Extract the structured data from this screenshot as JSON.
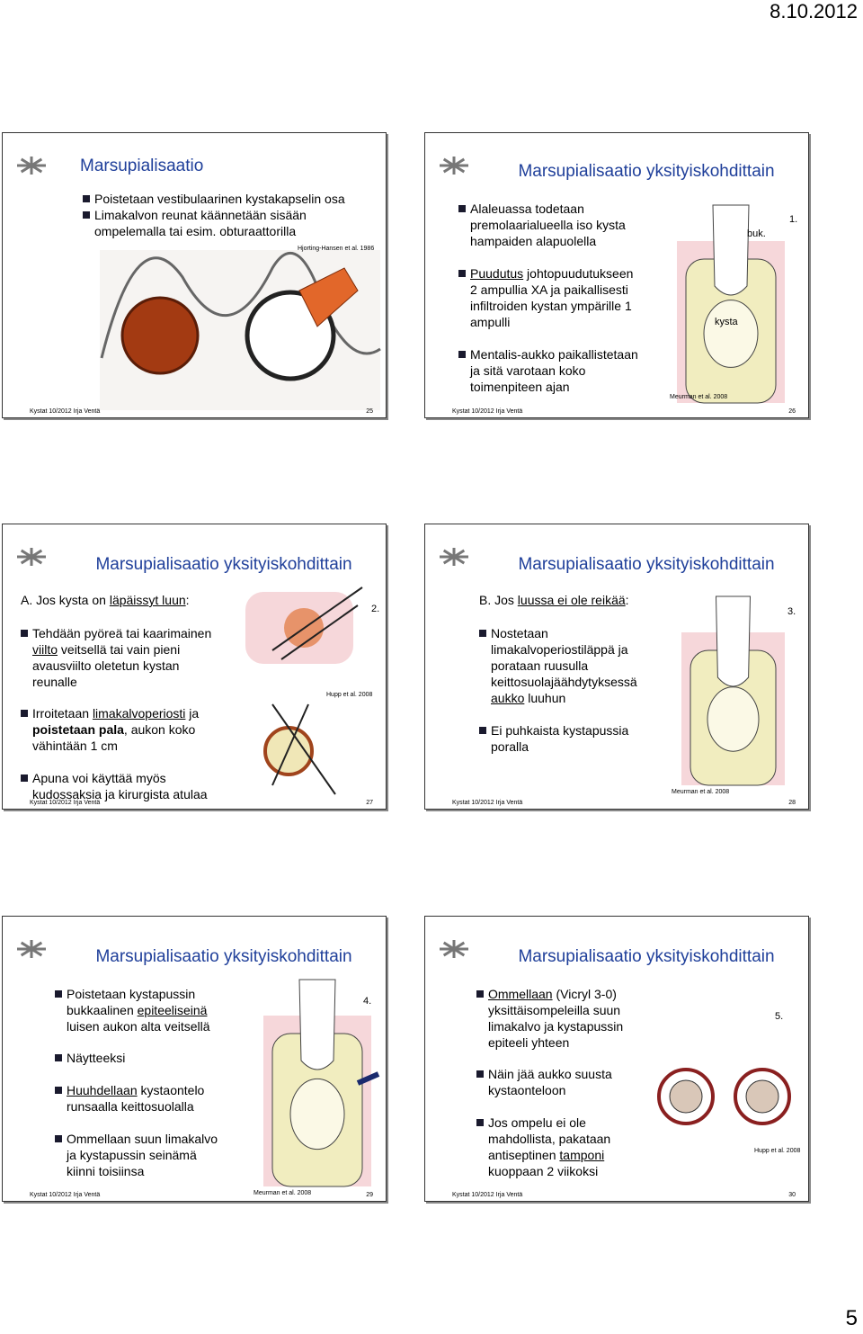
{
  "date": "8.10.2012",
  "page_number": "5",
  "slides": [
    {
      "number": "25",
      "title": "Marsupialisaatio",
      "footer": "Kystat 10/2012 Irja Ventä",
      "credit": "Hjorting-Hansen et al. 1986",
      "labels": [],
      "bullets": [
        [
          [
            "Poistetaan vestibulaarinen kystakapselin osa"
          ]
        ],
        [
          [
            "Limakalvon reunat käännetään sisään"
          ],
          [
            "ompelemalla tai esim. obturaattorilla"
          ]
        ]
      ]
    },
    {
      "number": "26",
      "title": "Marsupialisaatio yksityiskohdittain",
      "footer": "Kystat 10/2012 Irja Ventä",
      "credit": "Meurman et al. 2008",
      "labels": [
        "buk.",
        "1.",
        "kysta"
      ],
      "bullets": [
        [
          [
            "Alaleuassa todetaan"
          ],
          [
            "premolaarialueella iso kysta"
          ],
          [
            "hampaiden alapuolella"
          ]
        ],
        [
          [
            {
              "text": "Puudutus",
              "underline": true
            },
            " johtopuudutukseen"
          ],
          [
            "2 ampullia XA ja paikallisesti"
          ],
          [
            "infiltroiden kystan ympärille 1"
          ],
          [
            "ampulli"
          ]
        ],
        [
          [
            "Mentalis-aukko paikallistetaan"
          ],
          [
            "ja sitä varotaan koko"
          ],
          [
            "toimenpiteen ajan"
          ]
        ]
      ]
    },
    {
      "number": "27",
      "title": "Marsupialisaatio yksityiskohdittain",
      "footer": "Kystat 10/2012 Irja Ventä",
      "credit": "Hupp et al. 2008",
      "labels": [
        "2."
      ],
      "intro": [
        "A. Jos kysta on ",
        {
          "text": "läpäissyt luun",
          "underline": true
        },
        ":"
      ],
      "bullets": [
        [
          [
            "Tehdään pyöreä tai kaarimainen"
          ],
          [
            {
              "text": "viilto",
              "underline": true
            },
            " veitsellä tai vain pieni"
          ],
          [
            "avausviilto oletetun kystan"
          ],
          [
            "reunalle"
          ]
        ],
        [
          [
            "Irroitetaan ",
            {
              "text": "limakalvoperiosti",
              "underline": true
            },
            " ja"
          ],
          [
            {
              "text": "poistetaan pala",
              "bold": true
            },
            ", aukon koko"
          ],
          [
            "vähintään 1 cm"
          ]
        ],
        [
          [
            "Apuna voi käyttää myös"
          ],
          [
            "kudossaksia ja kirurgista atulaa"
          ]
        ]
      ]
    },
    {
      "number": "28",
      "title": "Marsupialisaatio yksityiskohdittain",
      "footer": "Kystat 10/2012 Irja Ventä",
      "credit": "Meurman et al. 2008",
      "labels": [
        "3."
      ],
      "intro": [
        "B. Jos ",
        {
          "text": "luussa ei ole reikää",
          "underline": true
        },
        ":"
      ],
      "bullets": [
        [
          [
            "Nostetaan"
          ],
          [
            "limakalvoperiostiläppä ja"
          ],
          [
            "porataan ruusulla"
          ],
          [
            "keittosuolajäähdytyksessä"
          ],
          [
            {
              "text": "aukko",
              "underline": true
            },
            " luuhun"
          ]
        ],
        [
          [
            "Ei puhkaista kystapussia"
          ],
          [
            "poralla"
          ]
        ]
      ]
    },
    {
      "number": "29",
      "title": "Marsupialisaatio yksityiskohdittain",
      "footer": "Kystat 10/2012 Irja Ventä",
      "credit": "Meurman et al. 2008",
      "labels": [
        "4."
      ],
      "bullets": [
        [
          [
            "Poistetaan kystapussin"
          ],
          [
            "bukkaalinen ",
            {
              "text": "epiteeliseinä",
              "underline": true
            }
          ],
          [
            "luisen aukon alta veitsellä"
          ]
        ],
        [
          [
            "Näytteeksi"
          ]
        ],
        [
          [
            {
              "text": "Huuhdellaan",
              "underline": true
            },
            " kystaontelo"
          ],
          [
            "runsaalla keittosuolalla"
          ]
        ],
        [
          [
            "Ommellaan suun limakalvo"
          ],
          [
            "ja kystapussin seinämä"
          ],
          [
            "kiinni toisiinsa"
          ]
        ]
      ]
    },
    {
      "number": "30",
      "title": "Marsupialisaatio yksityiskohdittain",
      "footer": "Kystat 10/2012 Irja Ventä",
      "credit": "Hupp et al. 2008",
      "labels": [
        "5."
      ],
      "bullets": [
        [
          [
            {
              "text": "Ommellaan",
              "underline": true
            },
            " (Vicryl 3-0)"
          ],
          [
            "yksittäisompeleilla suun"
          ],
          [
            "limakalvo ja kystapussin"
          ],
          [
            "epiteeli yhteen"
          ]
        ],
        [
          [
            "Näin jää aukko suusta"
          ],
          [
            "kystaonteloon"
          ]
        ],
        [
          [
            "Jos ompelu ei ole"
          ],
          [
            "mahdollista, pakataan"
          ],
          [
            "antiseptinen ",
            {
              "text": "tamponi",
              "underline": true
            }
          ],
          [
            "kuoppaan 2 viikoksi"
          ]
        ]
      ]
    }
  ]
}
